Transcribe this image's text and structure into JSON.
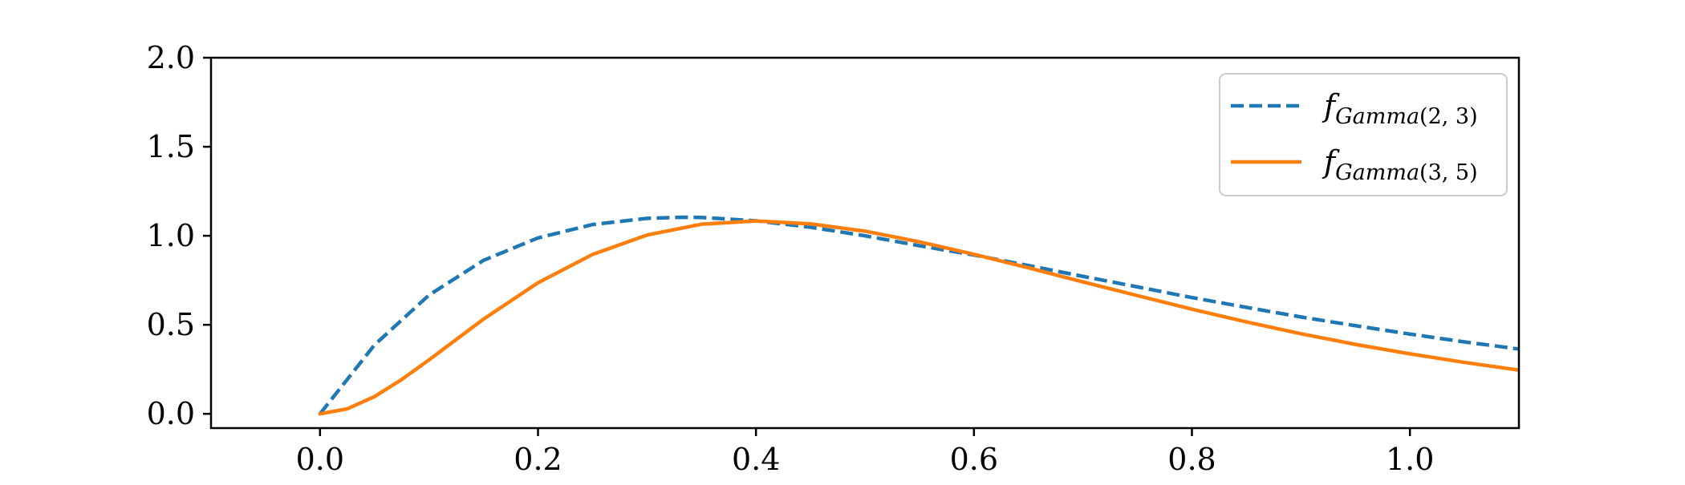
{
  "chart_data": {
    "type": "line",
    "title": "",
    "xlabel": "",
    "ylabel": "",
    "xlim": [
      -0.1,
      1.1
    ],
    "ylim": [
      -0.08,
      2.0
    ],
    "xticks": [
      0.0,
      0.2,
      0.4,
      0.6,
      0.8,
      1.0
    ],
    "xtick_labels": [
      "0.0",
      "0.2",
      "0.4",
      "0.6",
      "0.8",
      "1.0"
    ],
    "yticks": [
      0.0,
      0.5,
      1.0,
      1.5,
      2.0
    ],
    "ytick_labels": [
      "0.0",
      "0.5",
      "1.0",
      "1.5",
      "2.0"
    ],
    "grid": false,
    "legend_position": "top-right",
    "series": [
      {
        "name": "f_Gamma(2,3)",
        "legend_main": "f",
        "legend_sub": "Gamma",
        "legend_args": "(2, 3)",
        "color": "#1f77b4",
        "linestyle": "dashed",
        "x": [
          0.0,
          0.05,
          0.1,
          0.15,
          0.2,
          0.25,
          0.3,
          0.333,
          0.35,
          0.4,
          0.45,
          0.5,
          0.55,
          0.6,
          0.65,
          0.7,
          0.75,
          0.8,
          0.85,
          0.9,
          0.95,
          1.0,
          1.05,
          1.1
        ],
        "y": [
          0.0,
          0.387,
          0.667,
          0.862,
          0.988,
          1.063,
          1.098,
          1.104,
          1.103,
          1.084,
          1.048,
          1.0,
          0.944,
          0.892,
          0.833,
          0.772,
          0.713,
          0.653,
          0.598,
          0.544,
          0.495,
          0.448,
          0.404,
          0.364
        ]
      },
      {
        "name": "f_Gamma(3,5)",
        "legend_main": "f",
        "legend_sub": "Gamma",
        "legend_args": "(3, 5)",
        "color": "#ff7f0e",
        "linestyle": "solid",
        "x": [
          0.0,
          0.025,
          0.05,
          0.075,
          0.1,
          0.15,
          0.2,
          0.25,
          0.3,
          0.35,
          0.4,
          0.45,
          0.5,
          0.55,
          0.6,
          0.65,
          0.7,
          0.75,
          0.8,
          0.85,
          0.9,
          0.95,
          1.0,
          1.05,
          1.1
        ],
        "y": [
          0.0,
          0.028,
          0.097,
          0.193,
          0.303,
          0.532,
          0.736,
          0.895,
          1.004,
          1.065,
          1.083,
          1.067,
          1.026,
          0.966,
          0.896,
          0.82,
          0.741,
          0.664,
          0.588,
          0.516,
          0.45,
          0.39,
          0.337,
          0.289,
          0.246
        ]
      }
    ]
  }
}
